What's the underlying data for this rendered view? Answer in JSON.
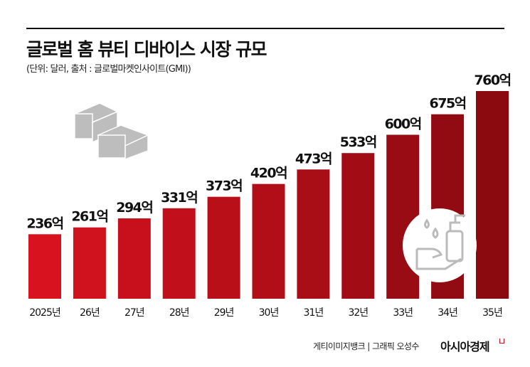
{
  "title": "글로벌 홈 뷰티 디바이스 시장 규모",
  "subtitle": "(단위: 달러, 출처 : 글로벌마켓인사이트(GMI))",
  "credit": "게티이미지뱅크 | 그래픽 오성수",
  "brand": "아시아경제",
  "colors": {
    "bar_start": "#d8121f",
    "bar_end": "#8a0a10",
    "title": "#111111"
  },
  "icons": [
    "paper-stack-icon",
    "hand-soap-icon"
  ],
  "chart_data": {
    "type": "bar",
    "categories": [
      "2025년",
      "26년",
      "27년",
      "28년",
      "29년",
      "30년",
      "31년",
      "32년",
      "33년",
      "34년",
      "35년"
    ],
    "values": [
      236,
      261,
      294,
      331,
      373,
      420,
      473,
      533,
      600,
      675,
      760
    ],
    "data_labels": [
      "236억",
      "261억",
      "294억",
      "331억",
      "373억",
      "420억",
      "473억",
      "533억",
      "600억",
      "675억",
      "760억"
    ],
    "title": "글로벌 홈 뷰티 디바이스 시장 규모",
    "xlabel": "",
    "ylabel": "",
    "grid": false
  }
}
